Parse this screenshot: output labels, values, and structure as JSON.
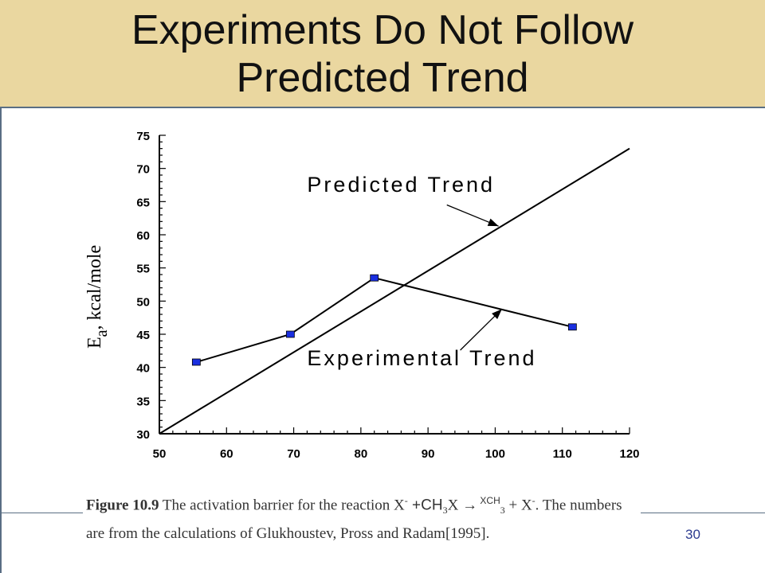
{
  "slide": {
    "title_line1": "Experiments Do Not Follow",
    "title_line2": "Predicted Trend",
    "page_number": "30",
    "accent_band_color": "#ead7a0"
  },
  "caption": {
    "figure_label": "Figure 10.9",
    "text1": " The activation barrier for the reaction X",
    "sup1": "-",
    "text2": " +CH",
    "sub1": "3",
    "text3": "X ",
    "arrow": "→",
    "text4": " XCH",
    "sub2": "3",
    "text5": " + X",
    "sup2": "-",
    "text6": ".  The numbers are from the calculations of Glukhoustev, Pross and Radam[1995]."
  },
  "chart_data": {
    "type": "line",
    "xlabel": "",
    "ylabel_main": "E",
    "ylabel_sub": "a",
    "ylabel_rest": ", kcal/mole",
    "xlim": [
      50,
      120
    ],
    "ylim": [
      30,
      75
    ],
    "xticks": [
      50,
      60,
      70,
      80,
      90,
      100,
      110,
      120
    ],
    "yticks": [
      30,
      35,
      40,
      45,
      50,
      55,
      60,
      65,
      70,
      75
    ],
    "grid": false,
    "series": [
      {
        "name": "Experimental Trend",
        "color": "#000000",
        "marker_color": "#1a2fe0",
        "x": [
          55.5,
          69.5,
          82,
          111.5
        ],
        "y": [
          40.8,
          45,
          53.5,
          46.1
        ]
      },
      {
        "name": "Predicted Trend",
        "color": "#000000",
        "x": [
          50,
          120
        ],
        "y": [
          30,
          73
        ]
      }
    ],
    "annotations": [
      {
        "text": "Predicted Trend",
        "x": 72,
        "y": 66.5,
        "arrow_to": [
          100.5,
          61.3
        ],
        "arrow_from": [
          92.8,
          64.5
        ]
      },
      {
        "text": "Experimental Trend",
        "x": 72,
        "y": 40.3,
        "arrow_to": [
          101,
          48.8
        ],
        "arrow_from": [
          94.8,
          42.6
        ]
      }
    ]
  }
}
